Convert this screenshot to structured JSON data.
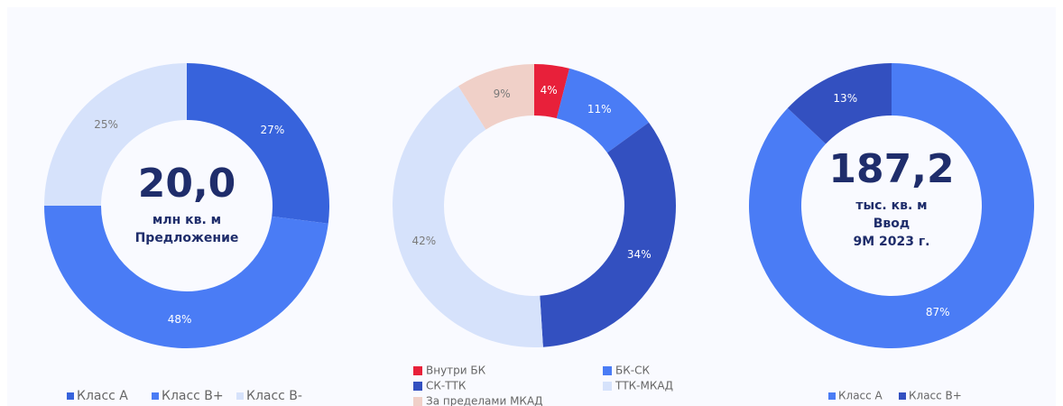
{
  "chart_data": [
    {
      "type": "pie",
      "categories": [
        "Класс А",
        "Класс В+",
        "Класс В-"
      ],
      "values": [
        27,
        48,
        25
      ],
      "value_labels": [
        "27%",
        "48%",
        "25%"
      ],
      "colors": [
        "#3763dc",
        "#4a7cf5",
        "#d6e2fb"
      ],
      "center_text": [
        "20,0",
        "млн кв. м",
        "Предложение"
      ],
      "legend": "bottom"
    },
    {
      "type": "pie",
      "categories": [
        "Внутри БК",
        "БК-СК",
        "СК-ТТК",
        "ТТК-МКАД",
        "За пределами МКАД"
      ],
      "values": [
        4,
        11,
        34,
        42,
        9
      ],
      "value_labels": [
        "4%",
        "11%",
        "34%",
        "42%",
        "9%"
      ],
      "colors": [
        "#e8203a",
        "#4a7cf5",
        "#3350c0",
        "#d6e2fb",
        "#f0d0c8"
      ],
      "legend": "bottom"
    },
    {
      "type": "pie",
      "categories": [
        "Класс А",
        "Класс В+"
      ],
      "values": [
        87,
        13
      ],
      "value_labels": [
        "87%",
        "13%"
      ],
      "colors": [
        "#4a7cf5",
        "#3350c0"
      ],
      "center_text": [
        "187,2",
        "тыс. кв. м",
        "Ввод",
        "9M 2023 г."
      ],
      "legend": "bottom"
    }
  ]
}
